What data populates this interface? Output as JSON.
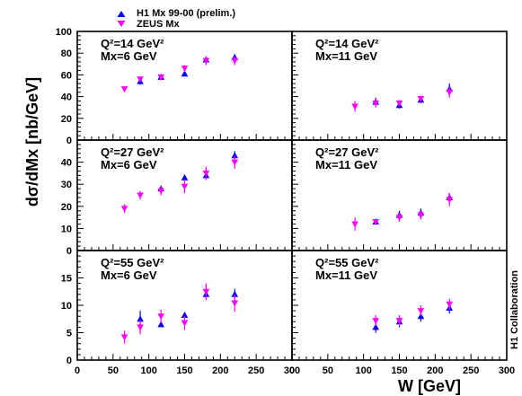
{
  "legend": [
    {
      "label": "H1 Mx 99-00 (prelim.)",
      "color": "#0000ff",
      "marker": "triangle-up"
    },
    {
      "label": "ZEUS Mx",
      "color": "#ff00ff",
      "marker": "triangle-down"
    }
  ],
  "ylabel": "dσ/dMx [nb/GeV]",
  "xlabel": "W [GeV]",
  "collaboration": "H1 Collaboration",
  "chart_data": [
    {
      "type": "scatter",
      "q2_label": "Q²=14 GeV²",
      "mx_label": "Mx=6 GeV",
      "xlim": [
        0,
        300
      ],
      "ylim": [
        0,
        100
      ],
      "xticks": [
        0,
        50,
        100,
        150,
        200,
        250
      ],
      "yticks": [
        0,
        20,
        40,
        60,
        80,
        100
      ],
      "series": [
        {
          "name": "H1 Mx 99-00 (prelim.)",
          "x": [
            88,
            117,
            150,
            180,
            220
          ],
          "y": [
            54,
            58,
            61,
            74,
            76
          ],
          "err": [
            3,
            2,
            2,
            3,
            3
          ]
        },
        {
          "name": "ZEUS Mx",
          "x": [
            66,
            88,
            117,
            150,
            180,
            220
          ],
          "y": [
            47,
            56,
            58,
            66,
            73,
            73
          ],
          "err": [
            2,
            2,
            2,
            3,
            4,
            4
          ]
        }
      ]
    },
    {
      "type": "scatter",
      "q2_label": "Q²=14 GeV²",
      "mx_label": "Mx=11 GeV",
      "xlim": [
        0,
        300
      ],
      "ylim": [
        0,
        100
      ],
      "xticks": [
        0,
        50,
        100,
        150,
        200,
        250
      ],
      "yticks": [
        0,
        20,
        40,
        60,
        80,
        100
      ],
      "series": [
        {
          "name": "H1 Mx 99-00 (prelim.)",
          "x": [
            117,
            150,
            180,
            220
          ],
          "y": [
            35,
            32,
            37,
            47
          ],
          "err": [
            4,
            3,
            3,
            5
          ]
        },
        {
          "name": "ZEUS Mx",
          "x": [
            88,
            117,
            150,
            180,
            220
          ],
          "y": [
            31,
            34,
            34,
            38,
            44
          ],
          "err": [
            5,
            4,
            3,
            3,
            5
          ]
        }
      ]
    },
    {
      "type": "scatter",
      "q2_label": "Q²=27 GeV²",
      "mx_label": "Mx=6 GeV",
      "xlim": [
        0,
        300
      ],
      "ylim": [
        0,
        50
      ],
      "xticks": [
        0,
        50,
        100,
        150,
        200,
        250
      ],
      "yticks": [
        0,
        10,
        20,
        30,
        40
      ],
      "series": [
        {
          "name": "H1 Mx 99-00 (prelim.)",
          "x": [
            117,
            150,
            180,
            220
          ],
          "y": [
            28,
            33,
            34,
            43
          ],
          "err": [
            1,
            1,
            2,
            2
          ]
        },
        {
          "name": "ZEUS Mx",
          "x": [
            66,
            88,
            117,
            150,
            180,
            220
          ],
          "y": [
            19,
            25,
            27,
            29,
            35,
            40
          ],
          "err": [
            2,
            2,
            2,
            3,
            3,
            3
          ]
        }
      ]
    },
    {
      "type": "scatter",
      "q2_label": "Q²=27 GeV²",
      "mx_label": "Mx=11 GeV",
      "xlim": [
        0,
        300
      ],
      "ylim": [
        0,
        50
      ],
      "xticks": [
        0,
        50,
        100,
        150,
        200,
        250
      ],
      "yticks": [
        0,
        10,
        20,
        30,
        40
      ],
      "series": [
        {
          "name": "H1 Mx 99-00 (prelim.)",
          "x": [
            117,
            150,
            180,
            220
          ],
          "y": [
            13,
            16,
            17,
            24
          ],
          "err": [
            1,
            2,
            2,
            2
          ]
        },
        {
          "name": "ZEUS Mx",
          "x": [
            88,
            117,
            150,
            180,
            220
          ],
          "y": [
            12,
            13,
            15,
            16,
            23
          ],
          "err": [
            3,
            1,
            2,
            2,
            3
          ]
        }
      ]
    },
    {
      "type": "scatter",
      "q2_label": "Q²=55 GeV²",
      "mx_label": "Mx=6 GeV",
      "xlim": [
        0,
        300
      ],
      "ylim": [
        0,
        20
      ],
      "xticks": [
        0,
        50,
        100,
        150,
        200,
        250,
        300
      ],
      "yticks": [
        0,
        5,
        10,
        15
      ],
      "series": [
        {
          "name": "H1 Mx 99-00 (prelim.)",
          "x": [
            88,
            117,
            150,
            180,
            220
          ],
          "y": [
            7.5,
            6.5,
            8.2,
            12,
            12
          ],
          "err": [
            1.5,
            0.5,
            0.5,
            1,
            1
          ]
        },
        {
          "name": "ZEUS Mx",
          "x": [
            66,
            88,
            117,
            150,
            180,
            220
          ],
          "y": [
            4.2,
            6,
            8,
            6.8,
            12.5,
            10.4
          ],
          "err": [
            1.2,
            1.3,
            1.2,
            1.3,
            1.5,
            1.6
          ]
        }
      ]
    },
    {
      "type": "scatter",
      "q2_label": "Q²=55 GeV²",
      "mx_label": "Mx=11 GeV",
      "xlim": [
        0,
        300
      ],
      "ylim": [
        0,
        20
      ],
      "xticks": [
        0,
        50,
        100,
        150,
        200,
        250,
        300
      ],
      "yticks": [
        0,
        5,
        10,
        15
      ],
      "series": [
        {
          "name": "H1 Mx 99-00 (prelim.)",
          "x": [
            117,
            150,
            180,
            220
          ],
          "y": [
            6,
            7,
            8,
            9.5
          ],
          "err": [
            1,
            1,
            1,
            1
          ]
        },
        {
          "name": "ZEUS Mx",
          "x": [
            117,
            150,
            180,
            220
          ],
          "y": [
            7.2,
            7.2,
            9,
            10.2
          ],
          "err": [
            1,
            1,
            1,
            1
          ]
        }
      ]
    }
  ]
}
